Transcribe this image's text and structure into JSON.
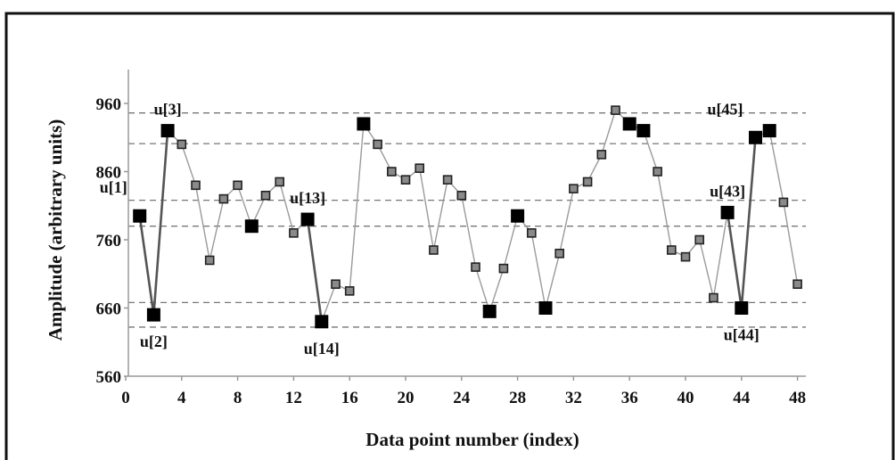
{
  "chart_data": {
    "type": "line",
    "xlabel": "Data point number (index)",
    "ylabel": "Amplitude (arbitrary units)",
    "xlim": [
      0,
      50
    ],
    "ylim": [
      560,
      990
    ],
    "xticks": [
      0,
      4,
      8,
      12,
      16,
      20,
      24,
      28,
      32,
      36,
      40,
      44,
      48
    ],
    "yticks": [
      560,
      660,
      760,
      860,
      960
    ],
    "grid": "dashed horizontal reference lines",
    "reference_lines": [
      946,
      901,
      818,
      780,
      668,
      632
    ],
    "series": [
      {
        "values": [
          {
            "x": 1,
            "y": 795,
            "highlight": true
          },
          {
            "x": 2,
            "y": 650,
            "highlight": true
          },
          {
            "x": 3,
            "y": 920,
            "highlight": true
          },
          {
            "x": 4,
            "y": 900,
            "highlight": false
          },
          {
            "x": 5,
            "y": 840,
            "highlight": false
          },
          {
            "x": 6,
            "y": 730,
            "highlight": false
          },
          {
            "x": 7,
            "y": 820,
            "highlight": false
          },
          {
            "x": 8,
            "y": 840,
            "highlight": false
          },
          {
            "x": 9,
            "y": 780,
            "highlight": true
          },
          {
            "x": 10,
            "y": 825,
            "highlight": false
          },
          {
            "x": 11,
            "y": 845,
            "highlight": false
          },
          {
            "x": 12,
            "y": 770,
            "highlight": false
          },
          {
            "x": 13,
            "y": 790,
            "highlight": true
          },
          {
            "x": 14,
            "y": 640,
            "highlight": true
          },
          {
            "x": 15,
            "y": 695,
            "highlight": false
          },
          {
            "x": 16,
            "y": 685,
            "highlight": false
          },
          {
            "x": 17,
            "y": 930,
            "highlight": true
          },
          {
            "x": 18,
            "y": 900,
            "highlight": false
          },
          {
            "x": 19,
            "y": 860,
            "highlight": false
          },
          {
            "x": 20,
            "y": 848,
            "highlight": false
          },
          {
            "x": 21,
            "y": 865,
            "highlight": false
          },
          {
            "x": 22,
            "y": 745,
            "highlight": false
          },
          {
            "x": 23,
            "y": 848,
            "highlight": false
          },
          {
            "x": 24,
            "y": 825,
            "highlight": false
          },
          {
            "x": 25,
            "y": 720,
            "highlight": false
          },
          {
            "x": 26,
            "y": 655,
            "highlight": true
          },
          {
            "x": 27,
            "y": 718,
            "highlight": false
          },
          {
            "x": 28,
            "y": 795,
            "highlight": true
          },
          {
            "x": 29,
            "y": 770,
            "highlight": false
          },
          {
            "x": 30,
            "y": 660,
            "highlight": true
          },
          {
            "x": 31,
            "y": 740,
            "highlight": false
          },
          {
            "x": 32,
            "y": 835,
            "highlight": false
          },
          {
            "x": 33,
            "y": 845,
            "highlight": false
          },
          {
            "x": 34,
            "y": 885,
            "highlight": false
          },
          {
            "x": 35,
            "y": 950,
            "highlight": false
          },
          {
            "x": 36,
            "y": 930,
            "highlight": true
          },
          {
            "x": 37,
            "y": 920,
            "highlight": true
          },
          {
            "x": 38,
            "y": 860,
            "highlight": false
          },
          {
            "x": 39,
            "y": 745,
            "highlight": false
          },
          {
            "x": 40,
            "y": 735,
            "highlight": false
          },
          {
            "x": 41,
            "y": 760,
            "highlight": false
          },
          {
            "x": 42,
            "y": 675,
            "highlight": false
          },
          {
            "x": 43,
            "y": 800,
            "highlight": true
          },
          {
            "x": 44,
            "y": 660,
            "highlight": true
          },
          {
            "x": 45,
            "y": 910,
            "highlight": true
          },
          {
            "x": 46,
            "y": 920,
            "highlight": true
          },
          {
            "x": 47,
            "y": 815,
            "highlight": false
          },
          {
            "x": 48,
            "y": 695,
            "highlight": false
          }
        ]
      }
    ],
    "annotations": [
      {
        "text": "u[1]",
        "x": 1,
        "y": 795,
        "pos": "above-left"
      },
      {
        "text": "u[2]",
        "x": 2,
        "y": 650,
        "pos": "below"
      },
      {
        "text": "u[3]",
        "x": 3,
        "y": 920,
        "pos": "above"
      },
      {
        "text": "u[13]",
        "x": 13,
        "y": 790,
        "pos": "above"
      },
      {
        "text": "u[14]",
        "x": 14,
        "y": 640,
        "pos": "below"
      },
      {
        "text": "u[43]",
        "x": 43,
        "y": 800,
        "pos": "above"
      },
      {
        "text": "u[44]",
        "x": 44,
        "y": 660,
        "pos": "below"
      },
      {
        "text": "u[45]",
        "x": 45,
        "y": 910,
        "pos": "above-left"
      }
    ],
    "emphasized_segments": [
      [
        1,
        2
      ],
      [
        2,
        3
      ],
      [
        13,
        14
      ],
      [
        43,
        44
      ],
      [
        44,
        45
      ]
    ]
  }
}
